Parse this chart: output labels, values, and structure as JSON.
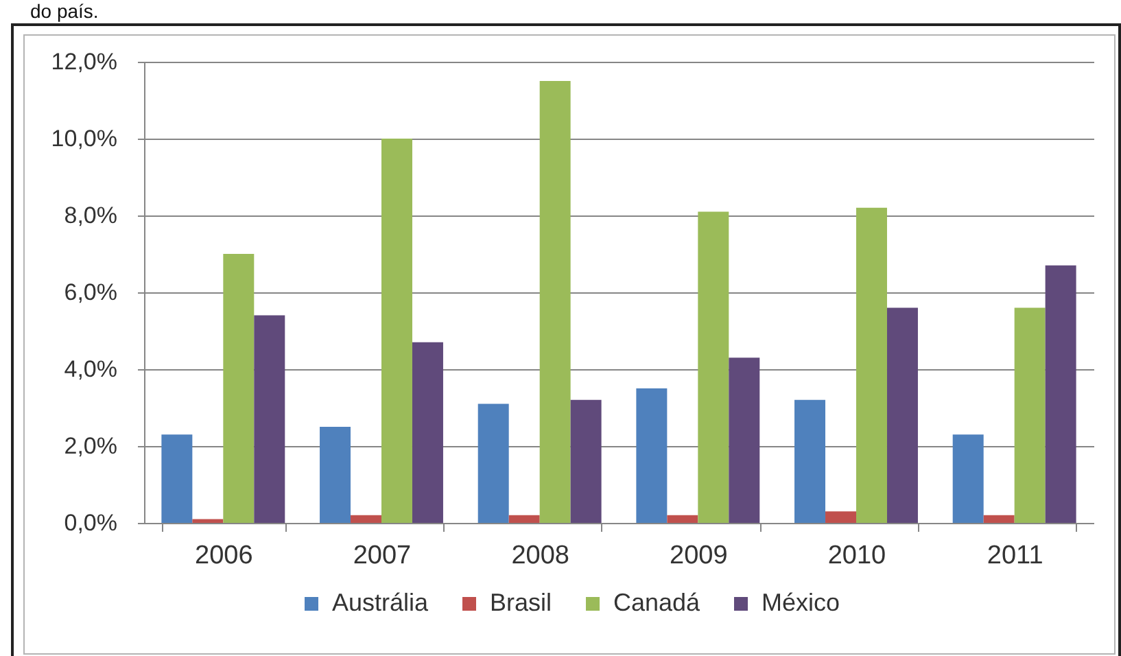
{
  "chart_data": {
    "type": "bar",
    "annotations": [
      "do país."
    ],
    "categories": [
      "2006",
      "2007",
      "2008",
      "2009",
      "2010",
      "2011"
    ],
    "series": [
      {
        "name": "Austrália",
        "color": "#4f81bd",
        "values": [
          2.3,
          2.5,
          3.1,
          3.5,
          3.2,
          2.3
        ]
      },
      {
        "name": "Brasil",
        "color": "#c0504d",
        "values": [
          0.1,
          0.2,
          0.2,
          0.2,
          0.3,
          0.2
        ]
      },
      {
        "name": "Canadá",
        "color": "#9bbb59",
        "values": [
          7.0,
          10.0,
          11.5,
          8.1,
          8.2,
          5.6
        ]
      },
      {
        "name": "México",
        "color": "#604a7b",
        "values": [
          5.4,
          4.7,
          3.2,
          4.3,
          5.6,
          6.7
        ]
      }
    ],
    "ylim": [
      0,
      12
    ],
    "yticks": [
      {
        "value": 0,
        "label": "0,0%"
      },
      {
        "value": 2,
        "label": "2,0%"
      },
      {
        "value": 4,
        "label": "4,0%"
      },
      {
        "value": 6,
        "label": "6,0%"
      },
      {
        "value": 8,
        "label": "8,0%"
      },
      {
        "value": 10,
        "label": "10,0%"
      },
      {
        "value": 12,
        "label": "12,0%"
      }
    ],
    "grid": "y",
    "legend": "bottom"
  }
}
